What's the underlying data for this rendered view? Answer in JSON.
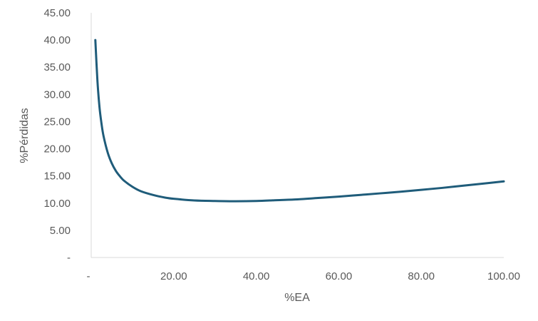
{
  "chart_data": {
    "type": "line",
    "title": "",
    "xlabel": "%EA",
    "ylabel": "%Pérdidas",
    "xlim": [
      0,
      100
    ],
    "ylim": [
      0,
      45
    ],
    "x_ticks": [
      0,
      20,
      40,
      60,
      80,
      100
    ],
    "x_tick_labels": [
      "-",
      "20.00",
      "40.00",
      "60.00",
      "80.00",
      "100.00"
    ],
    "y_ticks": [
      0,
      5,
      10,
      15,
      20,
      25,
      30,
      35,
      40,
      45
    ],
    "y_tick_labels": [
      "-",
      "5.00",
      "10.00",
      "15.00",
      "20.00",
      "25.00",
      "30.00",
      "35.00",
      "40.00",
      "45.00"
    ],
    "grid": false,
    "legend": "none",
    "series": [
      {
        "color": "#1f5c7a",
        "x": [
          1,
          1.5,
          2,
          2.5,
          3,
          4,
          5,
          6,
          7,
          8,
          10,
          12,
          15,
          18,
          20,
          25,
          30,
          35,
          40,
          45,
          50,
          55,
          60,
          65,
          70,
          75,
          80,
          85,
          90,
          95,
          100
        ],
        "y": [
          40.0,
          32.6,
          27.7,
          24.6,
          22.3,
          19.3,
          17.3,
          15.9,
          14.9,
          14.1,
          13.0,
          12.2,
          11.5,
          11.0,
          10.8,
          10.5,
          10.4,
          10.35,
          10.4,
          10.55,
          10.7,
          10.95,
          11.2,
          11.5,
          11.8,
          12.1,
          12.45,
          12.8,
          13.2,
          13.6,
          14.0
        ]
      }
    ]
  }
}
